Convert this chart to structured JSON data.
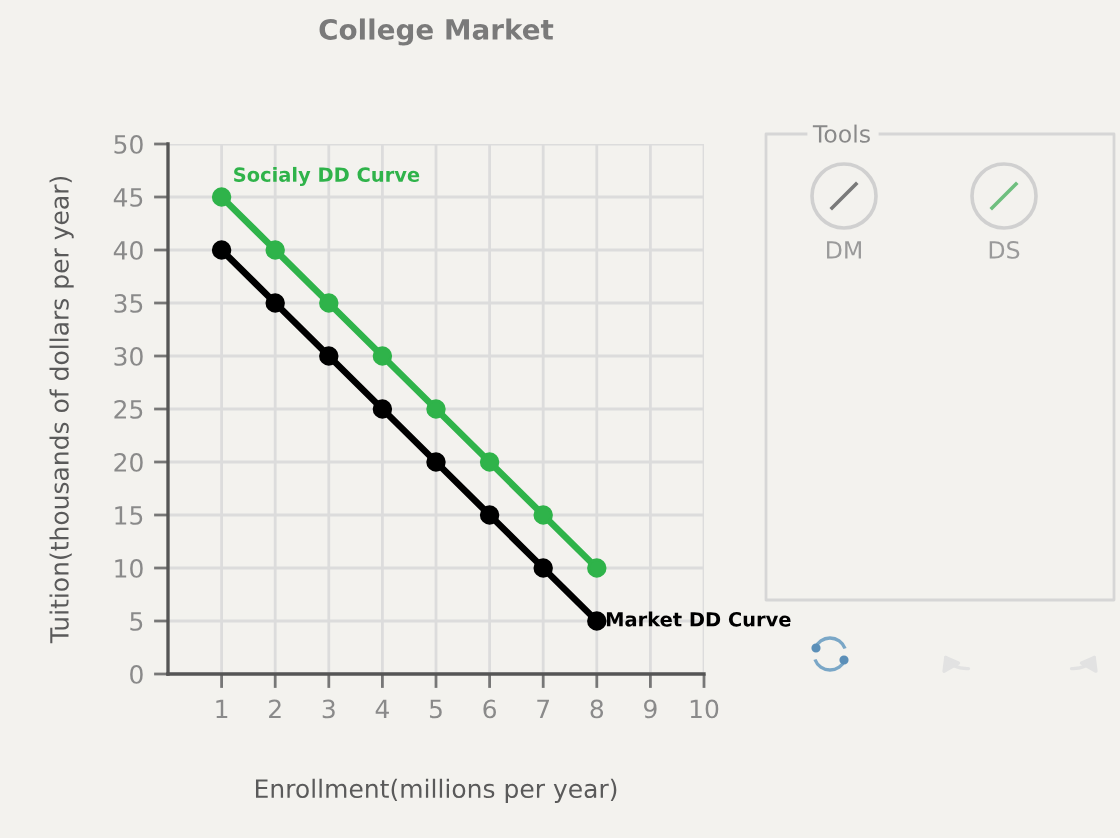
{
  "chart_data": {
    "type": "line",
    "title": "College Market",
    "xlabel": "Enrollment(millions per year)",
    "ylabel": "Tuition(thousands of dollars per year)",
    "x": [
      1,
      2,
      3,
      4,
      5,
      6,
      7,
      8
    ],
    "series": [
      {
        "name": "Socialy DD Curve",
        "color": "#2fb34a",
        "values": [
          45,
          40,
          35,
          30,
          25,
          20,
          15,
          10
        ]
      },
      {
        "name": "Market DD Curve",
        "color": "#000000",
        "values": [
          40,
          35,
          30,
          25,
          20,
          15,
          10,
          5
        ]
      }
    ],
    "xlim": [
      0,
      10
    ],
    "ylim": [
      0,
      50
    ],
    "xticks": [
      1,
      2,
      3,
      4,
      5,
      6,
      7,
      8,
      9,
      10
    ],
    "yticks": [
      0,
      5,
      10,
      15,
      20,
      25,
      30,
      35,
      40,
      45,
      50
    ],
    "grid": true,
    "marker": "circle",
    "line_style": "solid",
    "annotations": [
      "Tools",
      "DM",
      "DS"
    ]
  }
}
